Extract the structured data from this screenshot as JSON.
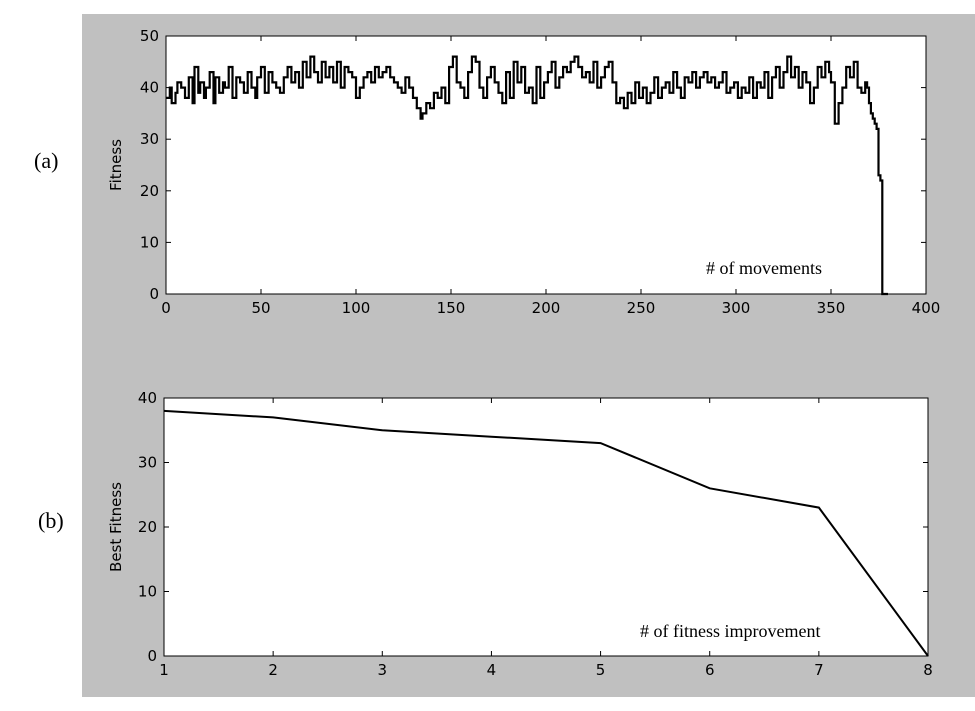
{
  "chart_data": [
    {
      "type": "line",
      "panel_label": "(a)",
      "ylabel": "Fitness",
      "annotation": "# of movements",
      "xlim": [
        0,
        400
      ],
      "ylim": [
        0,
        50
      ],
      "xticks": [
        0,
        50,
        100,
        150,
        200,
        250,
        300,
        350,
        400
      ],
      "yticks": [
        0,
        10,
        20,
        30,
        40,
        50
      ],
      "series": [
        {
          "x": [
            0,
            2,
            3,
            5,
            6,
            8,
            10,
            12,
            14,
            15,
            17,
            18,
            20,
            21,
            23,
            25,
            26,
            28,
            30,
            31,
            33,
            35,
            37,
            39,
            41,
            43,
            45,
            47,
            48,
            50,
            52,
            54,
            56,
            58,
            60,
            62,
            64,
            66,
            68,
            70,
            72,
            74,
            76,
            78,
            80,
            82,
            84,
            86,
            88,
            90,
            92,
            94,
            96,
            98,
            100,
            102,
            104,
            106,
            108,
            110,
            112,
            114,
            116,
            118,
            120,
            122,
            124,
            126,
            128,
            130,
            132,
            134,
            135,
            137,
            139,
            141,
            143,
            145,
            147,
            149,
            151,
            153,
            155,
            157,
            159,
            161,
            163,
            165,
            167,
            169,
            171,
            173,
            175,
            177,
            179,
            181,
            183,
            185,
            187,
            189,
            191,
            193,
            195,
            197,
            199,
            201,
            203,
            205,
            207,
            209,
            211,
            213,
            215,
            217,
            219,
            221,
            223,
            225,
            227,
            229,
            231,
            233,
            235,
            237,
            239,
            241,
            243,
            245,
            247,
            249,
            251,
            253,
            255,
            257,
            259,
            261,
            263,
            265,
            267,
            269,
            271,
            273,
            275,
            277,
            279,
            281,
            283,
            285,
            287,
            289,
            291,
            293,
            295,
            297,
            299,
            301,
            303,
            305,
            307,
            309,
            311,
            313,
            315,
            317,
            319,
            321,
            323,
            325,
            327,
            329,
            331,
            333,
            335,
            337,
            339,
            341,
            343,
            345,
            347,
            349,
            350,
            352,
            354,
            356,
            358,
            360,
            362,
            364,
            366,
            368,
            369,
            370,
            371,
            372,
            373,
            374,
            375,
            376,
            377,
            378,
            380
          ],
          "y": [
            38,
            40,
            37,
            39,
            41,
            40,
            38,
            42,
            37,
            44,
            39,
            41,
            38,
            40,
            43,
            37,
            42,
            39,
            41,
            40,
            44,
            38,
            42,
            41,
            39,
            43,
            40,
            38,
            42,
            44,
            39,
            43,
            41,
            40,
            39,
            42,
            44,
            41,
            43,
            40,
            45,
            42,
            46,
            43,
            41,
            45,
            42,
            44,
            41,
            45,
            40,
            44,
            43,
            42,
            38,
            40,
            42,
            43,
            41,
            44,
            42,
            43,
            44,
            42,
            41,
            40,
            39,
            42,
            40,
            38,
            36,
            34,
            35,
            37,
            36,
            39,
            38,
            40,
            37,
            44,
            46,
            41,
            40,
            38,
            43,
            46,
            45,
            40,
            38,
            42,
            44,
            41,
            39,
            37,
            43,
            38,
            45,
            41,
            44,
            39,
            40,
            37,
            44,
            38,
            41,
            43,
            45,
            40,
            42,
            44,
            43,
            45,
            46,
            44,
            42,
            43,
            41,
            45,
            40,
            42,
            44,
            45,
            41,
            37,
            38,
            36,
            39,
            37,
            41,
            38,
            40,
            37,
            39,
            42,
            38,
            40,
            41,
            39,
            43,
            40,
            38,
            42,
            41,
            43,
            40,
            42,
            43,
            41,
            42,
            40,
            41,
            43,
            39,
            40,
            41,
            38,
            40,
            39,
            42,
            38,
            41,
            40,
            43,
            38,
            42,
            44,
            40,
            43,
            46,
            42,
            44,
            40,
            43,
            41,
            37,
            40,
            44,
            42,
            45,
            43,
            41,
            33,
            37,
            40,
            44,
            42,
            45,
            40,
            39,
            41,
            40,
            37,
            35,
            34,
            33,
            32,
            23,
            22,
            0,
            0,
            0
          ]
        }
      ]
    },
    {
      "type": "line",
      "panel_label": "(b)",
      "ylabel": "Best Fitness",
      "annotation": "# of fitness improvement",
      "xlim": [
        1,
        8
      ],
      "ylim": [
        0,
        40
      ],
      "xticks": [
        1,
        2,
        3,
        4,
        5,
        6,
        7,
        8
      ],
      "yticks": [
        0,
        10,
        20,
        30,
        40
      ],
      "series": [
        {
          "x": [
            1,
            2,
            3,
            4,
            5,
            6,
            7,
            8
          ],
          "y": [
            38,
            37,
            35,
            34,
            33,
            26,
            23,
            0
          ]
        }
      ]
    }
  ]
}
